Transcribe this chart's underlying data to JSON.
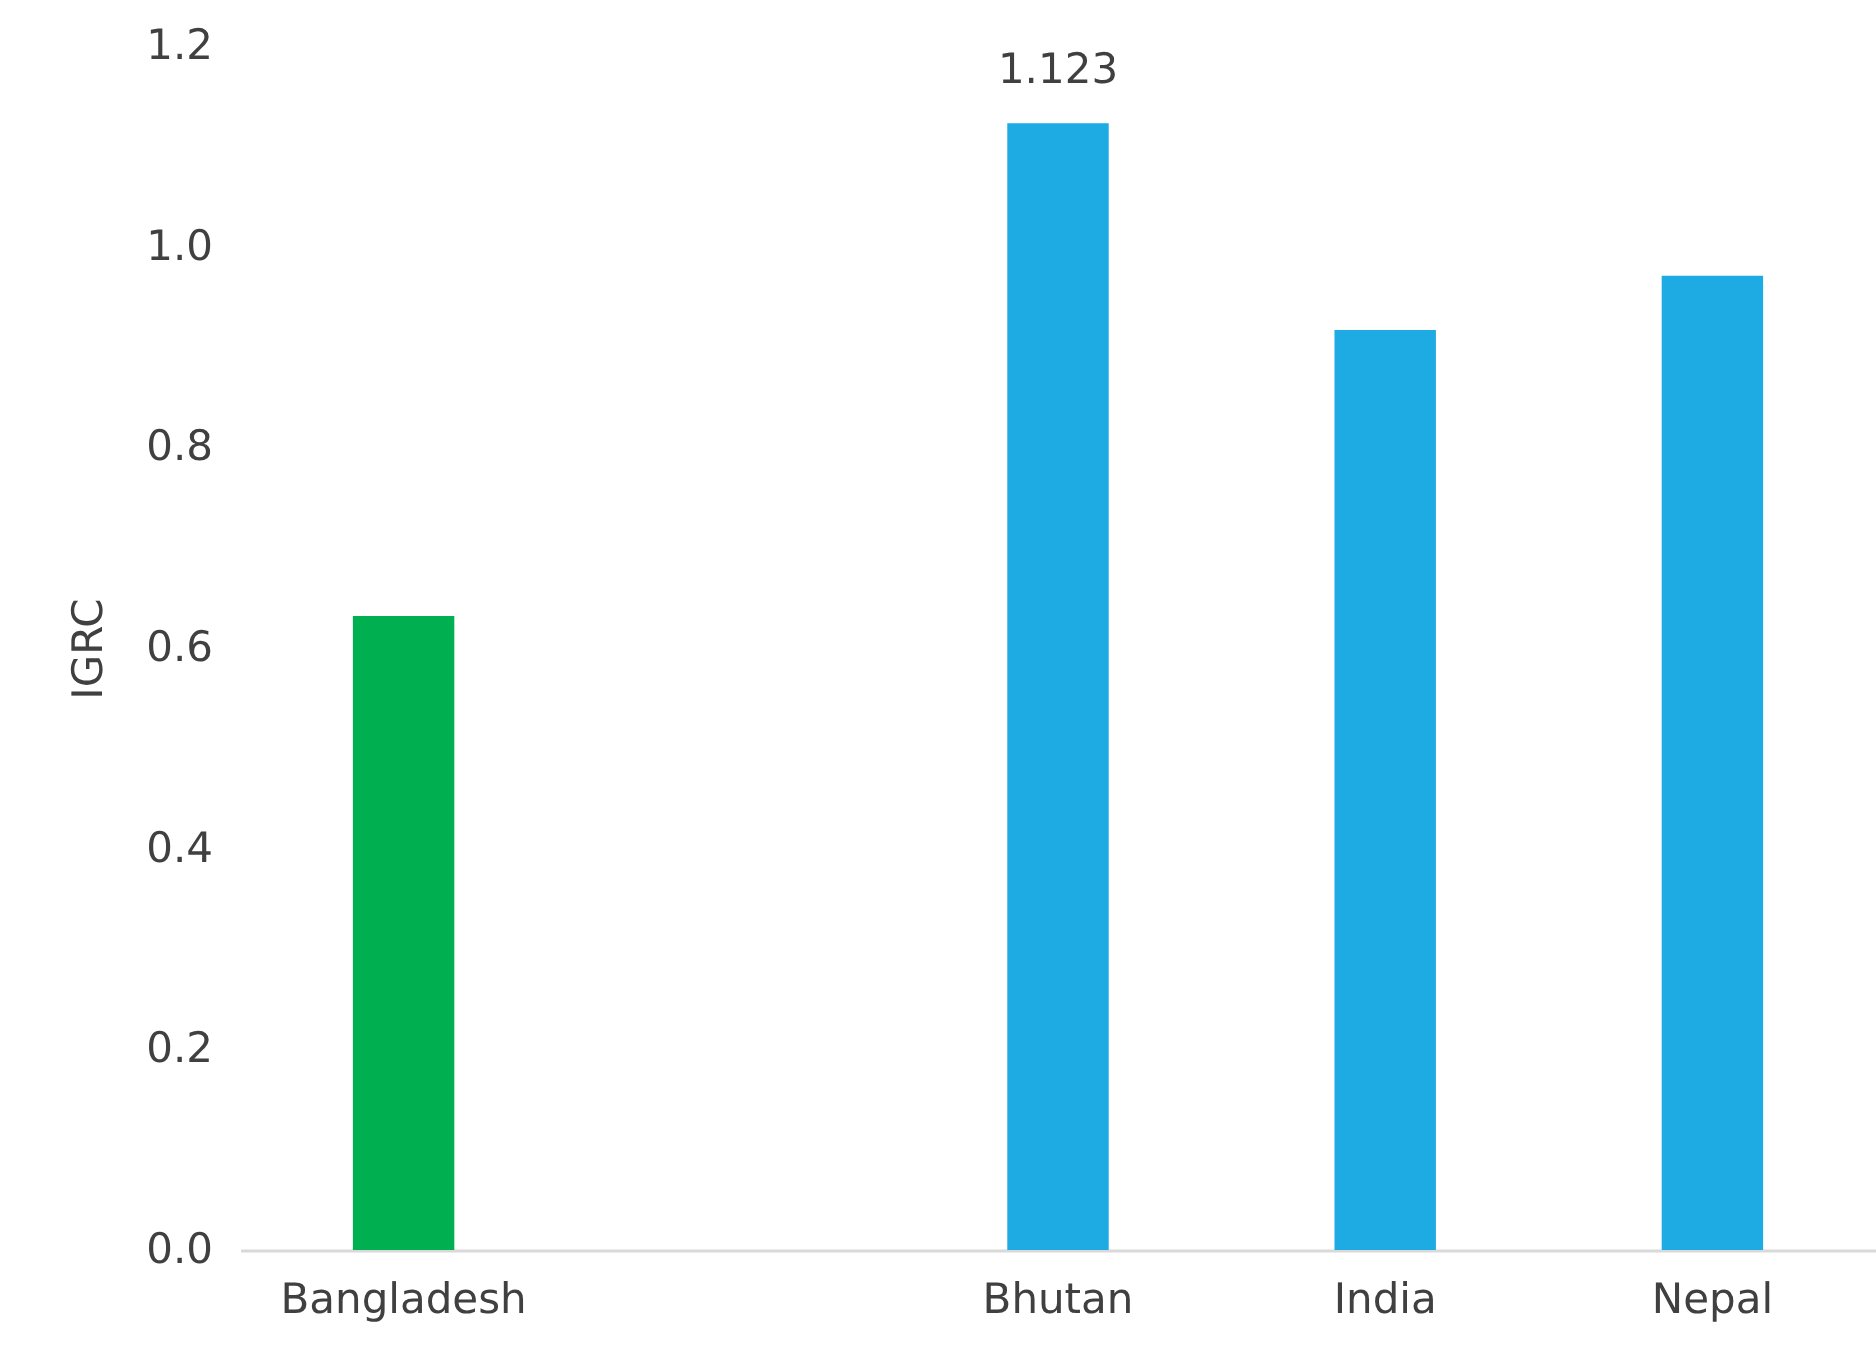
{
  "chart_data": {
    "type": "bar",
    "ylabel": "IGRC",
    "categories": [
      "Bangladesh",
      null,
      "Bhutan",
      "India",
      "Nepal"
    ],
    "values": [
      0.632,
      null,
      1.123,
      0.917,
      0.971
    ],
    "colors": [
      "#00b050",
      null,
      "#1eaae2",
      "#1eaae2",
      "#1eaae2"
    ],
    "value_labels": [
      null,
      null,
      "1.123",
      null,
      null
    ],
    "ylim": [
      0,
      1.2
    ],
    "yticks": [
      {
        "value": 0,
        "label": "0.0"
      },
      {
        "value": 0.2,
        "label": "0.2"
      },
      {
        "value": 0.4,
        "label": "0.4"
      },
      {
        "value": 0.6,
        "label": "0.6"
      },
      {
        "value": 0.8,
        "label": "0.8"
      },
      {
        "value": 1.0,
        "label": "1.0"
      },
      {
        "value": 1.2,
        "label": "1.2"
      }
    ],
    "grid": false
  }
}
